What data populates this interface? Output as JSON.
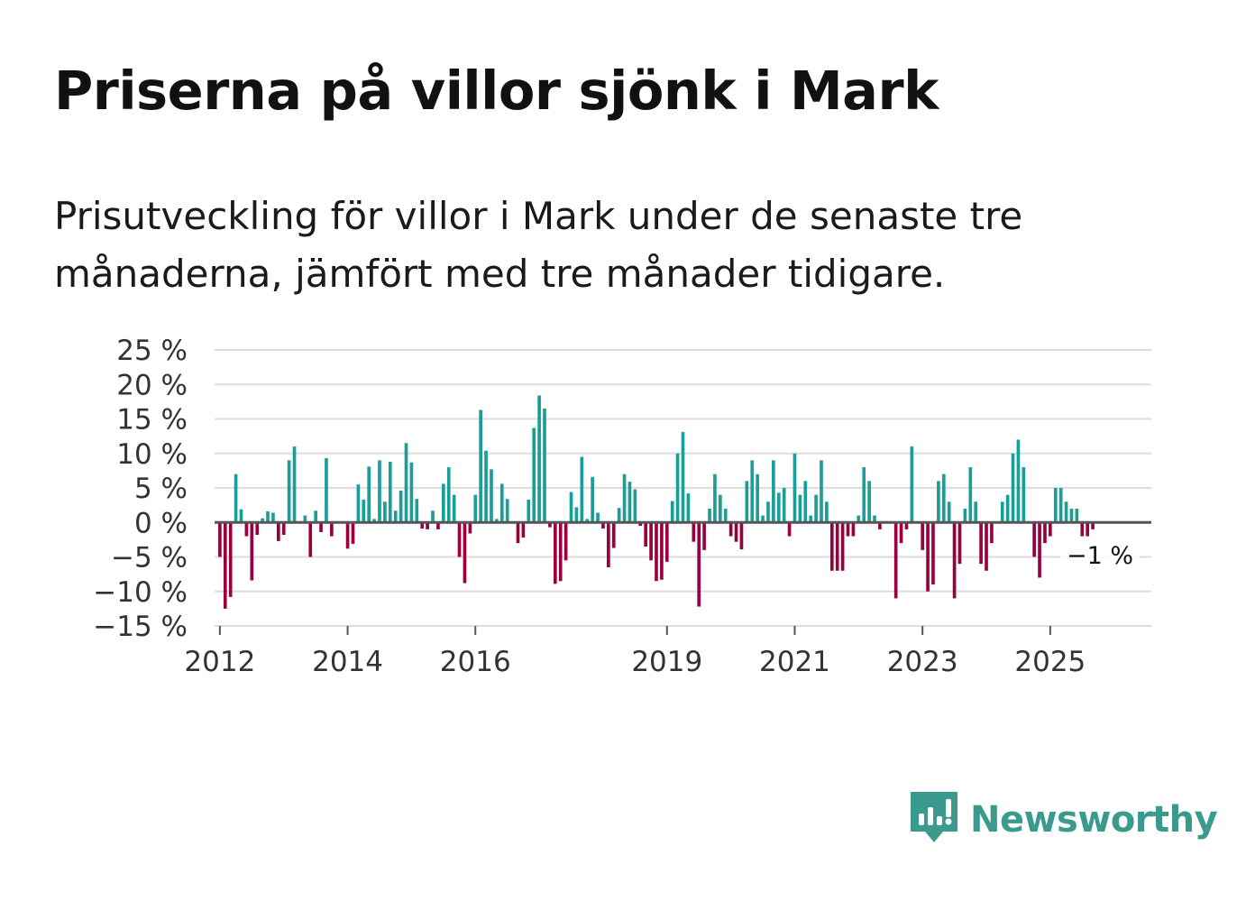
{
  "header": {
    "title": "Priserna på villor sjönk i Mark",
    "subtitle": "Prisutveckling för villor i Mark under de senaste tre månaderna, jämfört med tre månader tidigare."
  },
  "brand": {
    "name": "Newsworthy",
    "icon": "newsworthy-logo-icon"
  },
  "colors": {
    "positive": "#1a9e96",
    "negative": "#99003d",
    "grid": "#dddddd",
    "zero_line": "#555555",
    "brand": "#3a9a8e"
  },
  "chart_data": {
    "type": "bar",
    "title": "Priserna på villor sjönk i Mark",
    "xlabel": "",
    "ylabel": "",
    "ylim": [
      -15,
      25
    ],
    "y_ticks": [
      25,
      20,
      15,
      10,
      5,
      0,
      -5,
      -10,
      -15
    ],
    "y_tick_labels": [
      "25 %",
      "20 %",
      "15 %",
      "10 %",
      "5 %",
      "0 %",
      "−5 %",
      "−10 %",
      "−15 %"
    ],
    "x_start": 2011.917,
    "x_end": 2026.583,
    "x_ticks": [
      2012,
      2014,
      2016,
      2019,
      2021,
      2023,
      2025
    ],
    "x_tick_labels": [
      "2012",
      "2014",
      "2016",
      "2019",
      "2021",
      "2023",
      "2025"
    ],
    "series_start": "2012-01",
    "unit": "%",
    "values": [
      -5,
      -12.5,
      -10.8,
      7,
      1.9,
      -2,
      -8.4,
      -1.8,
      0.6,
      1.6,
      1.4,
      -2.7,
      -1.8,
      9,
      11,
      0,
      1,
      -5,
      1.7,
      -1.4,
      9.3,
      -2,
      0,
      0,
      -3.8,
      -3.1,
      5.5,
      3.3,
      8.1,
      0.5,
      9,
      3,
      8.8,
      1.7,
      4.6,
      11.5,
      8.7,
      3.4,
      -0.9,
      -1,
      1.7,
      -1,
      5.6,
      8,
      4,
      -5,
      -8.8,
      -1.6,
      4,
      16.3,
      10.4,
      7.7,
      0.5,
      5.6,
      3.4,
      0,
      -3,
      -2.2,
      3.3,
      13.7,
      18.4,
      16.5,
      -0.7,
      -8.9,
      -8.5,
      -5.5,
      4.4,
      2.2,
      9.5,
      0.5,
      6.6,
      1.4,
      -0.9,
      -6.5,
      -3.7,
      2.1,
      7,
      5.9,
      4.8,
      -0.5,
      -3.5,
      -5.5,
      -8.5,
      -8.3,
      -5.7,
      3.1,
      10,
      13.1,
      4.2,
      -2.8,
      -12.2,
      -4,
      2,
      7,
      4,
      2,
      -2,
      -2.8,
      -3.9,
      6,
      9,
      7,
      1,
      3,
      9,
      4.3,
      5,
      -2,
      10,
      4,
      6,
      1,
      4,
      9,
      3,
      -7,
      -7,
      -7,
      -2,
      -2,
      1,
      8,
      6,
      1,
      -1,
      0,
      0,
      -11,
      -3,
      -1,
      11,
      0,
      -4,
      -10,
      -9,
      6,
      7,
      3,
      -11,
      -6,
      2,
      8,
      3,
      -6,
      -7,
      -3,
      0,
      3,
      4,
      10,
      12,
      8,
      0,
      -5,
      -8,
      -3,
      -2,
      5,
      5,
      3,
      2,
      2,
      -2,
      -2,
      -1
    ],
    "annotation": {
      "label": "−1 %",
      "value": -1
    }
  }
}
